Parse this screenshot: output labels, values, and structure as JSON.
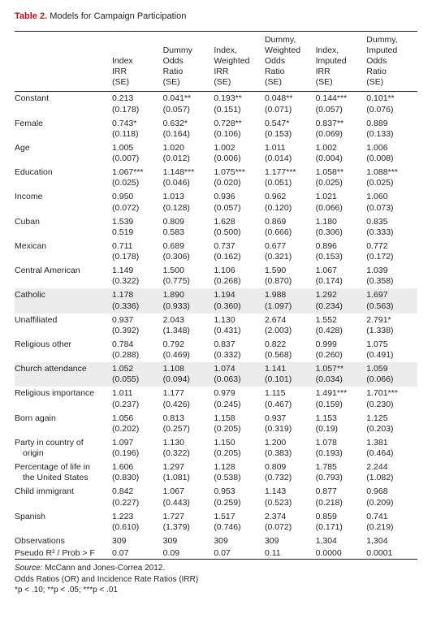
{
  "title": {
    "label": "Table 2.",
    "desc": "Models for Campaign Participation"
  },
  "columns": [
    [
      "Index",
      "IRR",
      "(SE)"
    ],
    [
      "Dummy",
      "Odds",
      "Ratio",
      "(SE)"
    ],
    [
      "Index,",
      "Weighted",
      "IRR",
      "(SE)"
    ],
    [
      "Dummy,",
      "Weighted",
      "Odds",
      "Ratio",
      "(SE)"
    ],
    [
      "Index,",
      "Imputed",
      "IRR",
      "(SE)"
    ],
    [
      "Dummy,",
      "Imputed",
      "Odds",
      "Ratio",
      "(SE)"
    ]
  ],
  "rows": [
    {
      "label": "Constant",
      "est": [
        "0.213",
        "0.041**",
        "0.193**",
        "0.048**",
        "0.144***",
        "0.101**"
      ],
      "se": [
        "(0.178)",
        "(0.057)",
        "(0.151)",
        "(0.071)",
        "(0.057)",
        "(0.076)"
      ]
    },
    {
      "label": "Female",
      "est": [
        "0.743*",
        "0.632*",
        "0.728**",
        "0.547*",
        "0.837**",
        "0.889"
      ],
      "se": [
        "(0.118)",
        "(0.164)",
        "(0.106)",
        "(0.153)",
        "(0.069)",
        "(0.133)"
      ]
    },
    {
      "label": "Age",
      "est": [
        "1.005",
        "1.020",
        "1.002",
        "1.011",
        "1.002",
        "1.006"
      ],
      "se": [
        "(0.007)",
        "(0.012)",
        "(0.006)",
        "(0.014)",
        "(0.004)",
        "(0.008)"
      ]
    },
    {
      "label": "Education",
      "est": [
        "1.067***",
        "1.148***",
        "1.075***",
        "1.177***",
        "1.058**",
        "1.088***"
      ],
      "se": [
        "(0.025)",
        "(0.046)",
        "(0.020)",
        "(0.051)",
        "(0.025)",
        "(0.025)"
      ]
    },
    {
      "label": "Income",
      "est": [
        "0.950",
        "1.013",
        "0.936",
        "0.962",
        "1.021",
        "1.060"
      ],
      "se": [
        "(0.072)",
        "(0.128)",
        "(0.057)",
        "(0.120)",
        "(0.066)",
        "(0.073)"
      ]
    },
    {
      "label": "Cuban",
      "est": [
        "1.539",
        "0.809",
        "1.628",
        "0.869",
        "1.180",
        "0.835"
      ],
      "se": [
        "0.519",
        "0.583",
        "(0.500)",
        "(0.666)",
        "(0.306)",
        "(0.333)"
      ]
    },
    {
      "label": "Mexican",
      "est": [
        "0.711",
        "0.689",
        "0.737",
        "0.677",
        "0.896",
        "0.772"
      ],
      "se": [
        "(0.178)",
        "(0.306)",
        "(0.162)",
        "(0.321)",
        "(0.153)",
        "(0.172)"
      ]
    },
    {
      "label": "Central American",
      "est": [
        "1.149",
        "1.500",
        "1.106",
        "1.590",
        "1.067",
        "1.039"
      ],
      "se": [
        "(0.322)",
        "(0.775)",
        "(0.268)",
        "(0.870)",
        "(0.174)",
        "(0.358)"
      ]
    },
    {
      "label": "Catholic",
      "shade": true,
      "est": [
        "1.178",
        "1.890",
        "1.194",
        "1.988",
        "1.292",
        "1.697"
      ],
      "se": [
        "(0.336)",
        "(0.933)",
        "(0.360)",
        "(1.097)",
        "(0.234)",
        "(0.563)"
      ]
    },
    {
      "label": "Unaffiliated",
      "est": [
        "0.937",
        "2.043",
        "1.130",
        "2.674",
        "1.552",
        "2.791*"
      ],
      "se": [
        "(0.392)",
        "(1.348)",
        "(0.431)",
        "(2.003)",
        "(0.428)",
        "(1.338)"
      ]
    },
    {
      "label": "Religious other",
      "est": [
        "0.784",
        "0.792",
        "0.837",
        "0.822",
        "0.999",
        "1.075"
      ],
      "se": [
        "(0.288)",
        "(0.469)",
        "(0.332)",
        "(0.568)",
        "(0.260)",
        "(0.491)"
      ]
    },
    {
      "label": "Church attendance",
      "shade": true,
      "est": [
        "1.052",
        "1.108",
        "1.074",
        "1.141",
        "1.057**",
        "1.059"
      ],
      "se": [
        "(0.055)",
        "(0.094)",
        "(0.063)",
        "(0.101)",
        "(0.034)",
        "(0.066)"
      ]
    },
    {
      "label": "Religious importance",
      "est": [
        "1.011",
        "1.177",
        "0.979",
        "1.115",
        "1.491***",
        "1.701***"
      ],
      "se": [
        "(0.237)",
        "(0.426)",
        "(0.245)",
        "(0.467)",
        "(0.159)",
        "(0.230)"
      ]
    },
    {
      "label": "Born again",
      "est": [
        "1.056",
        "0.813",
        "1.158",
        "0.937",
        "1.153",
        "1.125"
      ],
      "se": [
        "(0.202)",
        "(0.257)",
        "(0.205)",
        "(0.319)",
        "(0.19)",
        "(0.203)"
      ]
    },
    {
      "label": "Party in country of",
      "label2": "origin",
      "est": [
        "1.097",
        "1.130",
        "1.150",
        "1.200",
        "1.078",
        "1.381"
      ],
      "se": [
        "(0.196)",
        "(0.322)",
        "(0.205)",
        "(0.383)",
        "(0.193)",
        "(0.464)"
      ]
    },
    {
      "label": "Percentage of life in",
      "label2": "the United States",
      "est": [
        "1.606",
        "1.297",
        "1.128",
        "0.809",
        "1.785",
        "2.244"
      ],
      "se": [
        "(0.830)",
        "(1.081)",
        "(0.538)",
        "(0.732)",
        "(0.793)",
        "(1.082)"
      ]
    },
    {
      "label": "Child immigrant",
      "est": [
        "0.842",
        "1.067",
        "0.953",
        "1.143",
        "0.877",
        "0.968"
      ],
      "se": [
        "(0.227)",
        "(0.443)",
        "(0.259)",
        "(0.523)",
        "(0.218)",
        "(0.209)"
      ]
    },
    {
      "label": "Spanish",
      "est": [
        "1.223",
        "1.727",
        "1.517",
        "2.374",
        "0.859",
        "0.741"
      ],
      "se": [
        "(0.610)",
        "(1.379)",
        "(0.746)",
        "(0.072)",
        "(0.171)",
        "(0.219)"
      ]
    },
    {
      "label": "Observations",
      "single": true,
      "est": [
        "309",
        "309",
        "309",
        "309",
        "1,304",
        "1,304"
      ]
    },
    {
      "label": "Pseudo R² / Prob > F",
      "single": true,
      "est": [
        "0.07",
        "0.09",
        "0.07",
        "0.11",
        "0.0000",
        "0.0001"
      ]
    }
  ],
  "footnotes": {
    "source_label": "Source:",
    "source_text": " McCann and Jones-Correa 2012.",
    "line2": "Odds Ratios (OR) and Incidence Rate Ratios (IRR)",
    "line3": "*p < .10; **p < .05; ***p < .01"
  }
}
